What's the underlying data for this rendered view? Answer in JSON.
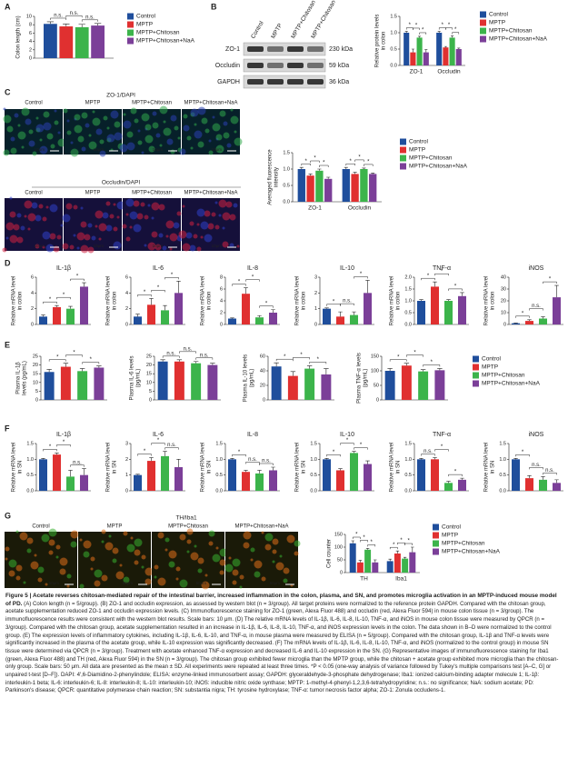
{
  "panel_labels": [
    "A",
    "B",
    "C",
    "D",
    "E",
    "F",
    "G"
  ],
  "blot": {
    "columns": [
      "Control",
      "MPTP",
      "MPTP+Chitosan",
      "MPTP+Chitosan+NaA"
    ],
    "rows": [
      {
        "name": "ZO-1",
        "size": "230 kDa"
      },
      {
        "name": "Occludin",
        "size": "59 kDa"
      },
      {
        "name": "GAPDH",
        "size": "36 kDa"
      }
    ]
  },
  "images": [
    {
      "title": "ZO-1/DAPI",
      "columns": [
        "Control",
        "MPTP",
        "MPTP+Chitosan",
        "MPTP+Chitosan+NaA"
      ],
      "scale": "10μm"
    },
    {
      "title": "Occludin/DAPI",
      "columns": [
        "Control",
        "MPTP",
        "MPTP+Chitosan",
        "MPTP+Chitosan+NaA"
      ],
      "scale": "10μm"
    },
    {
      "title": "TH/Iba1",
      "columns": [
        "Control",
        "MPTP",
        "MPTP+Chitosan",
        "MPTP+Chitosan+NaA"
      ],
      "scale": "50μm"
    }
  ],
  "chart_data": [
    {
      "type": "bar",
      "ylabel": [
        "Colon length (cm)"
      ],
      "categories": [
        null
      ],
      "series": [
        {
          "name": "Control",
          "color": "#1f4e9c",
          "values": [
            8.2
          ],
          "errors": [
            0.5
          ]
        },
        {
          "name": "MPTP",
          "color": "#e03030",
          "values": [
            7.6
          ],
          "errors": [
            0.6
          ]
        },
        {
          "name": "MPTP+Chitosan",
          "color": "#3cb44b",
          "values": [
            7.4
          ],
          "errors": [
            0.7
          ]
        },
        {
          "name": "MPTP+Chitosan+NaA",
          "color": "#7b3f98",
          "values": [
            7.8
          ],
          "errors": [
            0.5
          ]
        }
      ],
      "ylim": [
        0,
        10
      ],
      "yticks": [
        0,
        2,
        4,
        6,
        8,
        10
      ],
      "significance": [
        "n.s.",
        "n.s.",
        "n.s."
      ]
    },
    {
      "type": "bar",
      "ylabel": [
        "Relative protein levels",
        "in colon"
      ],
      "categories": [
        "ZO-1",
        "Occludin"
      ],
      "series": [
        {
          "name": "Control",
          "color": "#1f4e9c",
          "values": [
            1.0,
            1.0
          ],
          "errors": [
            0.04,
            0.04
          ]
        },
        {
          "name": "MPTP",
          "color": "#e03030",
          "values": [
            0.4,
            0.55
          ],
          "errors": [
            0.1,
            0.03
          ]
        },
        {
          "name": "MPTP+Chitosan",
          "color": "#3cb44b",
          "values": [
            0.85,
            0.85
          ],
          "errors": [
            0.04,
            0.05
          ]
        },
        {
          "name": "MPTP+Chitosan+NaA",
          "color": "#7b3f98",
          "values": [
            0.4,
            0.5
          ],
          "errors": [
            0.08,
            0.03
          ]
        }
      ],
      "ylim": [
        0,
        1.5
      ],
      "yticks": [
        {
          "value": 0,
          "label": "0.0"
        },
        0.5,
        {
          "value": 1,
          "label": "1.0"
        },
        1.5
      ],
      "significance": [
        "*",
        "*",
        "*",
        "*",
        "*",
        "*"
      ]
    },
    {
      "type": "bar",
      "ylabel": [
        "Averaged fluorescence",
        "intensity"
      ],
      "categories": [
        "ZO-1",
        "Occludin"
      ],
      "series": [
        {
          "name": "Control",
          "color": "#1f4e9c",
          "values": [
            1.0,
            1.0
          ],
          "errors": [
            0.05,
            0.05
          ]
        },
        {
          "name": "MPTP",
          "color": "#e03030",
          "values": [
            0.8,
            0.85
          ],
          "errors": [
            0.05,
            0.05
          ]
        },
        {
          "name": "MPTP+Chitosan",
          "color": "#3cb44b",
          "values": [
            0.95,
            1.0
          ],
          "errors": [
            0.05,
            0.03
          ]
        },
        {
          "name": "MPTP+Chitosan+NaA",
          "color": "#7b3f98",
          "values": [
            0.7,
            0.85
          ],
          "errors": [
            0.05,
            0.03
          ]
        }
      ],
      "ylim": [
        0,
        1.5
      ],
      "yticks": [
        {
          "value": 0,
          "label": "0.0"
        },
        0.5,
        {
          "value": 1,
          "label": "1.0"
        },
        1.5
      ],
      "significance": [
        "*",
        "*",
        "*",
        "*",
        "*",
        "*"
      ]
    },
    {
      "type": "bar",
      "title": "IL-1β",
      "ylabel": [
        "Relative mRNA level",
        "in colon"
      ],
      "values": [
        1,
        2.2,
        2.0,
        4.8
      ],
      "errors": [
        0.2,
        0.2,
        0.3,
        0.5
      ],
      "colors": [
        "#1f4e9c",
        "#e03030",
        "#3cb44b",
        "#7b3f98"
      ],
      "ylim": [
        0,
        6
      ],
      "yticks": [
        0,
        2,
        4,
        6
      ],
      "significance": [
        "*",
        "*",
        "*"
      ]
    },
    {
      "type": "bar",
      "title": "IL-6",
      "ylabel": [
        "Relative mRNA level",
        "in colon"
      ],
      "values": [
        1,
        2.5,
        1.8,
        4.0
      ],
      "errors": [
        0.3,
        0.8,
        0.6,
        1.5
      ],
      "colors": [
        "#1f4e9c",
        "#e03030",
        "#3cb44b",
        "#7b3f98"
      ],
      "ylim": [
        0,
        6
      ],
      "yticks": [
        0,
        2,
        4,
        6
      ],
      "significance": [
        "*",
        "*",
        "*"
      ]
    },
    {
      "type": "bar",
      "title": "IL-8",
      "ylabel": [
        "Relative mRNA level",
        "in colon"
      ],
      "values": [
        1,
        5.2,
        1.2,
        2.0
      ],
      "errors": [
        0.1,
        1.0,
        0.3,
        0.5
      ],
      "colors": [
        "#1f4e9c",
        "#e03030",
        "#3cb44b",
        "#7b3f98"
      ],
      "ylim": [
        0,
        8
      ],
      "yticks": [
        0,
        2,
        4,
        6,
        8
      ],
      "significance": [
        "*",
        "*",
        "*"
      ]
    },
    {
      "type": "bar",
      "title": "IL-10",
      "ylabel": [
        "Relative mRNA level",
        "in colon"
      ],
      "values": [
        1,
        0.5,
        0.6,
        2.0
      ],
      "errors": [
        0.05,
        0.3,
        0.2,
        0.8
      ],
      "colors": [
        "#1f4e9c",
        "#e03030",
        "#3cb44b",
        "#7b3f98"
      ],
      "ylim": [
        0,
        3
      ],
      "yticks": [
        0,
        1,
        2,
        3
      ],
      "significance": [
        "*",
        "n.s.",
        "*"
      ]
    },
    {
      "type": "bar",
      "title": "TNF-α",
      "ylabel": [
        "Relative mRNA level",
        "in colon"
      ],
      "values": [
        1,
        1.6,
        1.0,
        1.2
      ],
      "errors": [
        0.05,
        0.2,
        0.05,
        0.15
      ],
      "colors": [
        "#1f4e9c",
        "#e03030",
        "#3cb44b",
        "#7b3f98"
      ],
      "ylim": [
        0,
        2
      ],
      "yticks": [
        {
          "value": 0,
          "label": "0.0"
        },
        0.5,
        {
          "value": 1,
          "label": "1.0"
        },
        1.5,
        {
          "value": 2,
          "label": "2.0"
        }
      ],
      "significance": [
        "*",
        "*",
        "*"
      ]
    },
    {
      "type": "bar",
      "title": "iNOS",
      "ylabel": [
        "Relative mRNA level",
        "in colon"
      ],
      "values": [
        1,
        3,
        5,
        23
      ],
      "errors": [
        0.3,
        1,
        1.5,
        10
      ],
      "colors": [
        "#1f4e9c",
        "#e03030",
        "#3cb44b",
        "#7b3f98"
      ],
      "ylim": [
        0,
        40
      ],
      "yticks": [
        0,
        10,
        20,
        30,
        40
      ],
      "significance": [
        "*",
        "n.s.",
        "*"
      ]
    },
    {
      "type": "bar",
      "ylabel": [
        "Plasma IL-1β",
        "levels (pg/mL)"
      ],
      "values": [
        16,
        19,
        16.5,
        18.5
      ],
      "errors": [
        1.5,
        2,
        1.5,
        1
      ],
      "colors": [
        "#1f4e9c",
        "#e03030",
        "#3cb44b",
        "#7b3f98"
      ],
      "ylim": [
        0,
        25
      ],
      "yticks": [
        0,
        5,
        10,
        15,
        20,
        25
      ],
      "significance": [
        "*",
        "*",
        "*"
      ],
      "legend": [
        {
          "name": "Control",
          "color": "#1f4e9c"
        },
        {
          "name": "MPTP",
          "color": "#e03030"
        },
        {
          "name": "MPTP+Chitosan",
          "color": "#3cb44b"
        },
        {
          "name": "MPTP+Chitosan+NaA",
          "color": "#7b3f98"
        }
      ]
    },
    {
      "type": "bar",
      "ylabel": [
        "Plasma IL-6 levels",
        "(pg/mL)"
      ],
      "values": [
        22,
        22,
        21,
        20
      ],
      "errors": [
        1,
        1,
        1,
        1
      ],
      "colors": [
        "#1f4e9c",
        "#e03030",
        "#3cb44b",
        "#7b3f98"
      ],
      "ylim": [
        0,
        25
      ],
      "yticks": [
        0,
        5,
        10,
        15,
        20,
        25
      ],
      "significance": [
        "n.s.",
        "n.s.",
        "n.s."
      ]
    },
    {
      "type": "bar",
      "ylabel": [
        "Plasma IL-10 levels",
        "(pg/mL)"
      ],
      "values": [
        46,
        33,
        43,
        35
      ],
      "errors": [
        5,
        6,
        4,
        8
      ],
      "colors": [
        "#1f4e9c",
        "#e03030",
        "#3cb44b",
        "#7b3f98"
      ],
      "ylim": [
        0,
        60
      ],
      "yticks": [
        0,
        20,
        40,
        60
      ],
      "significance": [
        "*",
        "*",
        "*"
      ]
    },
    {
      "type": "bar",
      "ylabel": [
        "Plasma TNF-α levels",
        "(pg/mL)"
      ],
      "values": [
        100,
        118,
        98,
        102
      ],
      "errors": [
        8,
        8,
        6,
        6
      ],
      "colors": [
        "#1f4e9c",
        "#e03030",
        "#3cb44b",
        "#7b3f98"
      ],
      "ylim": [
        0,
        150
      ],
      "yticks": [
        0,
        50,
        100,
        150
      ],
      "significance": [
        "*",
        "*",
        "*"
      ]
    },
    {
      "type": "bar",
      "title": "IL-1β",
      "ylabel": [
        "Relative mRNA level",
        "in SN"
      ],
      "values": [
        1,
        1.15,
        0.45,
        0.5
      ],
      "errors": [
        0.03,
        0.05,
        0.2,
        0.2
      ],
      "colors": [
        "#1f4e9c",
        "#e03030",
        "#3cb44b",
        "#7b3f98"
      ],
      "ylim": [
        0,
        1.5
      ],
      "yticks": [
        {
          "value": 0,
          "label": "0.0"
        },
        0.5,
        {
          "value": 1,
          "label": "1.0"
        },
        1.5
      ],
      "significance": [
        "*",
        "*",
        "n.s."
      ]
    },
    {
      "type": "bar",
      "title": "IL-6",
      "ylabel": [
        "Relative mRNA level",
        "in SN"
      ],
      "values": [
        1,
        1.9,
        2.2,
        1.5
      ],
      "errors": [
        0.05,
        0.2,
        0.3,
        0.5
      ],
      "colors": [
        "#1f4e9c",
        "#e03030",
        "#3cb44b",
        "#7b3f98"
      ],
      "ylim": [
        0,
        3
      ],
      "yticks": [
        0,
        1,
        2,
        3
      ],
      "significance": [
        "*",
        "*",
        "n.s."
      ]
    },
    {
      "type": "bar",
      "title": "IL-8",
      "ylabel": [
        "Relative mRNA level",
        "in SN"
      ],
      "values": [
        1,
        0.6,
        0.55,
        0.65
      ],
      "errors": [
        0.03,
        0.05,
        0.1,
        0.1
      ],
      "colors": [
        "#1f4e9c",
        "#e03030",
        "#3cb44b",
        "#7b3f98"
      ],
      "ylim": [
        0,
        1.5
      ],
      "yticks": [
        {
          "value": 0,
          "label": "0.0"
        },
        0.5,
        {
          "value": 1,
          "label": "1.0"
        },
        1.5
      ],
      "significance": [
        "*",
        "n.s.",
        "n.s."
      ]
    },
    {
      "type": "bar",
      "title": "IL-10",
      "ylabel": [
        "Relative mRNA level",
        "in SN"
      ],
      "values": [
        1,
        0.65,
        1.2,
        0.85
      ],
      "errors": [
        0.03,
        0.05,
        0.05,
        0.1
      ],
      "colors": [
        "#1f4e9c",
        "#e03030",
        "#3cb44b",
        "#7b3f98"
      ],
      "ylim": [
        0,
        1.5
      ],
      "yticks": [
        {
          "value": 0,
          "label": "0.0"
        },
        0.5,
        {
          "value": 1,
          "label": "1.0"
        },
        1.5
      ],
      "significance": [
        "*",
        "*",
        "*"
      ]
    },
    {
      "type": "bar",
      "title": "TNF-α",
      "ylabel": [
        "Relative mRNA level",
        "in SN"
      ],
      "values": [
        1,
        1.0,
        0.25,
        0.35
      ],
      "errors": [
        0.03,
        0.05,
        0.05,
        0.05
      ],
      "colors": [
        "#1f4e9c",
        "#e03030",
        "#3cb44b",
        "#7b3f98"
      ],
      "ylim": [
        0,
        1.5
      ],
      "yticks": [
        {
          "value": 0,
          "label": "0.0"
        },
        0.5,
        {
          "value": 1,
          "label": "1.0"
        },
        1.5
      ],
      "significance": [
        "n.s.",
        "*",
        "*"
      ]
    },
    {
      "type": "bar",
      "title": "iNOS",
      "ylabel": [
        "Relative mRNA level",
        "in SN"
      ],
      "values": [
        1,
        0.4,
        0.35,
        0.25
      ],
      "errors": [
        0.03,
        0.08,
        0.1,
        0.1
      ],
      "colors": [
        "#1f4e9c",
        "#e03030",
        "#3cb44b",
        "#7b3f98"
      ],
      "ylim": [
        0,
        1.5
      ],
      "yticks": [
        {
          "value": 0,
          "label": "0.0"
        },
        0.5,
        {
          "value": 1,
          "label": "1.0"
        },
        1.5
      ],
      "significance": [
        "*",
        "n.s.",
        "n.s."
      ]
    },
    {
      "type": "bar",
      "ylabel": [
        "Cell counter"
      ],
      "categories": [
        "TH",
        "Iba1"
      ],
      "series": [
        {
          "name": "Control",
          "color": "#1f4e9c",
          "values": [
            115,
            45
          ],
          "errors": [
            10,
            8
          ]
        },
        {
          "name": "MPTP",
          "color": "#e03030",
          "values": [
            40,
            75
          ],
          "errors": [
            8,
            10
          ]
        },
        {
          "name": "MPTP+Chitosan",
          "color": "#3cb44b",
          "values": [
            90,
            55
          ],
          "errors": [
            5,
            5
          ]
        },
        {
          "name": "MPTP+Chitosan+NaA",
          "color": "#7b3f98",
          "values": [
            40,
            80
          ],
          "errors": [
            10,
            20
          ]
        }
      ],
      "ylim": [
        0,
        150
      ],
      "yticks": [
        0,
        50,
        100,
        150
      ],
      "significance": [
        "*",
        "*",
        "*",
        "*",
        "*",
        "*"
      ]
    }
  ],
  "caption": {
    "title": "Figure 5 | Acetate reverses chitosan-mediated repair of the intestinal barrier, increased inflammation in the colon, plasma, and SN, and promotes microglia activation in an MPTP-induced mouse model of PD.",
    "body": "(A) Colon length (n = 5/group). (B) ZO-1 and occludin expression, as assessed by western blot (n = 3/group). All target proteins were normalized to the reference protein GAPDH. Compared with the chitosan group, acetate supplementation reduced ZO-1 and occludin expression levels. (C) Immunofluorescence staining for ZO-1 (green, Alexa Fluor 488) and occludin (red, Alexa Fluor 594) in mouse colon tissue (n = 3/group). The immunofluorescence results were consistent with the western blot results. Scale bars: 10 μm. (D) The relative mRNA levels of IL-1β, IL-6, IL-8, IL-10, TNF-α, and iNOS in mouse colon tissue were measured by QPCR (n = 3/group). Compared with the chitosan group, acetate supplementation resulted in an increase in IL-1β, IL-6, IL-8, IL-10, TNF-α, and iNOS expression levels in the colon. The data shown in B–D were normalized to the control group. (E) The expression levels of inflammatory cytokines, including IL-1β, IL-6, IL-10, and TNF-α, in mouse plasma were measured by ELISA (n = 5/group). Compared with the chitosan group, IL-1β and TNF-α levels were significantly increased in the plasma of the acetate group, while IL-10 expression was significantly decreased. (F) The mRNA levels of IL-1β, IL-6, IL-8, IL-10, TNF-α, and iNOS (normalized to the control group) in mouse SN tissue were determined via QPCR (n = 3/group). Treatment with acetate enhanced TNF-α expression and decreased IL-6 and IL-10 expression in the SN. (G) Representative images of immunofluorescence staining for Iba1 (green, Alexa Fluor 488) and TH (red, Alexa Fluor 594) in the SN (n = 3/group). The chitosan group exhibited fewer microglia than the MPTP group, while the chitosan + acetate group exhibited more microglia than the chitosan-only group. Scale bars: 50 μm. All data are presented as the mean ± SD. All experiments were repeated at least three times. *P < 0.05 (one-way analysis of variance followed by Tukey's multiple comparisons test [A–C, G] or unpaired t-test [D–F]). DAPI: 4′,6-Diamidino-2-phenylindole; ELISA: enzyme-linked immunosorbent assay; GAPDH: glyceraldehyde-3-phosphate dehydrogenase; Iba1: ionized calcium-binding adapter molecule 1; IL-1β: interleukin-1 beta; IL-6: interleukin-6; IL-8: interleukin-8; IL-10: interleukin-10; iNOS: inducible nitric oxide synthase; MPTP: 1-methyl-4-phenyl-1,2,3,6-tetrahydropyridine; n.s.: no significance; NaA: sodium acetate; PD: Parkinson's disease; QPCR: quantitative polymerase chain reaction; SN: substantia nigra; TH: tyrosine hydroxylase; TNF-α: tumor necrosis factor alpha; ZO-1: Zonula occludens-1."
  }
}
